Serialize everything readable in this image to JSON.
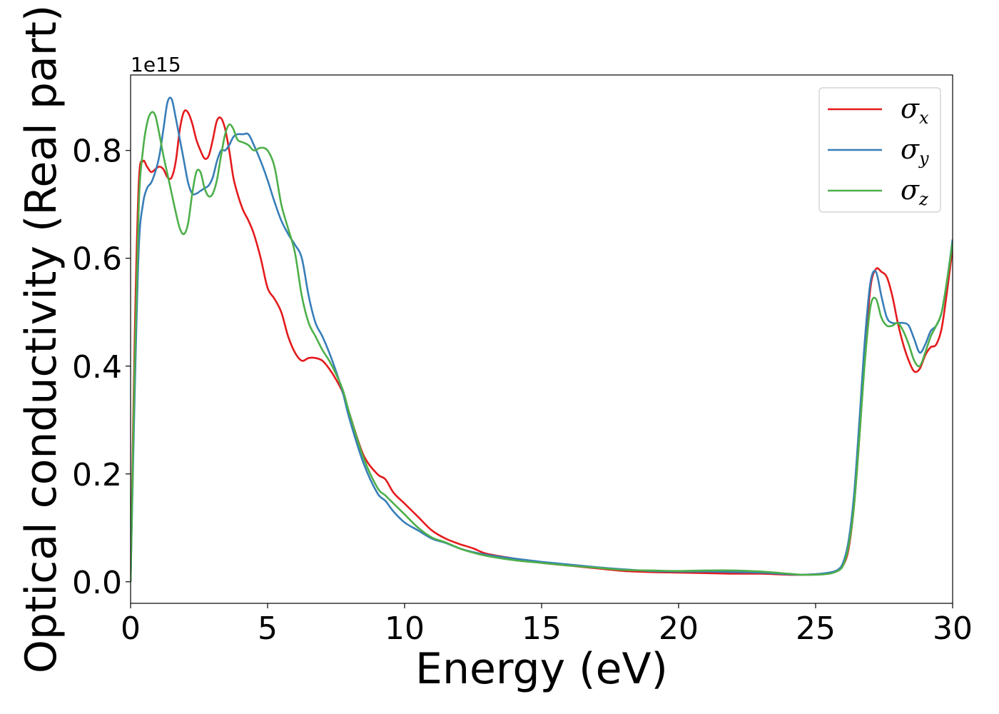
{
  "chart_data": {
    "type": "line",
    "xlabel": "Energy (eV)",
    "ylabel": "Optical conductivity (Real part)",
    "y_offset_label": "1e15",
    "xlim": [
      0,
      30
    ],
    "ylim": [
      -0.04,
      0.94
    ],
    "x_ticks": [
      0,
      5,
      10,
      15,
      20,
      25,
      30
    ],
    "y_ticks": [
      0.0,
      0.2,
      0.4,
      0.6,
      0.8
    ],
    "y_tick_labels": [
      "0.0",
      "0.2",
      "0.4",
      "0.6",
      "0.8"
    ],
    "grid": false,
    "legend_position": "top-right",
    "series": [
      {
        "name": "σx",
        "symbol": "σ",
        "sub": "x",
        "color": "#e41a1c",
        "x": [
          0,
          0.15,
          0.3,
          0.45,
          0.6,
          0.75,
          0.9,
          1.05,
          1.2,
          1.35,
          1.5,
          1.65,
          1.8,
          1.95,
          2.1,
          2.25,
          2.4,
          2.55,
          2.7,
          2.85,
          3.0,
          3.15,
          3.3,
          3.45,
          3.6,
          3.75,
          3.9,
          4.1,
          4.3,
          4.5,
          4.75,
          5.0,
          5.25,
          5.5,
          5.75,
          6.0,
          6.25,
          6.5,
          6.75,
          7.0,
          7.25,
          7.5,
          7.75,
          8.0,
          8.5,
          9.0,
          9.3,
          9.6,
          10.0,
          10.5,
          11.0,
          11.5,
          12.0,
          12.5,
          13.0,
          14.0,
          15.0,
          16.0,
          17.0,
          18.0,
          19.0,
          20.0,
          21.0,
          22.0,
          23.0,
          24.0,
          24.5,
          25.0,
          25.5,
          25.8,
          26.0,
          26.2,
          26.4,
          26.6,
          26.8,
          27.0,
          27.2,
          27.4,
          27.6,
          27.8,
          28.0,
          28.2,
          28.4,
          28.6,
          28.8,
          29.0,
          29.2,
          29.4,
          29.6,
          29.8,
          30.0
        ],
        "y": [
          0.0,
          0.45,
          0.74,
          0.78,
          0.77,
          0.76,
          0.765,
          0.77,
          0.765,
          0.75,
          0.75,
          0.78,
          0.84,
          0.872,
          0.87,
          0.85,
          0.82,
          0.8,
          0.785,
          0.79,
          0.82,
          0.855,
          0.86,
          0.84,
          0.8,
          0.75,
          0.72,
          0.69,
          0.67,
          0.645,
          0.6,
          0.545,
          0.525,
          0.5,
          0.455,
          0.425,
          0.41,
          0.415,
          0.415,
          0.41,
          0.395,
          0.375,
          0.35,
          0.31,
          0.235,
          0.2,
          0.19,
          0.165,
          0.145,
          0.12,
          0.095,
          0.08,
          0.07,
          0.062,
          0.052,
          0.043,
          0.035,
          0.03,
          0.025,
          0.02,
          0.018,
          0.017,
          0.016,
          0.015,
          0.015,
          0.013,
          0.013,
          0.014,
          0.016,
          0.02,
          0.03,
          0.06,
          0.14,
          0.27,
          0.42,
          0.545,
          0.58,
          0.575,
          0.565,
          0.53,
          0.48,
          0.44,
          0.41,
          0.39,
          0.395,
          0.42,
          0.435,
          0.44,
          0.47,
          0.54,
          0.62
        ]
      },
      {
        "name": "σy",
        "symbol": "σ",
        "sub": "y",
        "color": "#377eb8",
        "x": [
          0,
          0.15,
          0.3,
          0.45,
          0.6,
          0.75,
          0.9,
          1.05,
          1.2,
          1.35,
          1.5,
          1.65,
          1.8,
          1.95,
          2.1,
          2.25,
          2.4,
          2.55,
          2.7,
          2.85,
          3.0,
          3.15,
          3.3,
          3.45,
          3.6,
          3.75,
          3.9,
          4.1,
          4.3,
          4.5,
          4.75,
          5.0,
          5.25,
          5.5,
          5.75,
          6.0,
          6.25,
          6.5,
          6.75,
          7.0,
          7.25,
          7.5,
          7.75,
          8.0,
          8.5,
          9.0,
          9.3,
          9.6,
          10.0,
          10.5,
          11.0,
          11.5,
          12.0,
          12.5,
          13.0,
          14.0,
          15.0,
          16.0,
          17.0,
          18.0,
          19.0,
          20.0,
          21.0,
          22.0,
          23.0,
          24.0,
          24.5,
          25.0,
          25.5,
          25.8,
          26.0,
          26.2,
          26.4,
          26.6,
          26.8,
          27.0,
          27.2,
          27.4,
          27.6,
          27.8,
          28.0,
          28.2,
          28.4,
          28.6,
          28.8,
          29.0,
          29.2,
          29.4,
          29.6,
          29.8,
          30.0
        ],
        "y": [
          0.0,
          0.35,
          0.62,
          0.7,
          0.73,
          0.74,
          0.76,
          0.79,
          0.84,
          0.89,
          0.895,
          0.86,
          0.82,
          0.78,
          0.74,
          0.72,
          0.72,
          0.725,
          0.73,
          0.735,
          0.75,
          0.78,
          0.8,
          0.8,
          0.81,
          0.825,
          0.83,
          0.83,
          0.83,
          0.81,
          0.78,
          0.745,
          0.705,
          0.67,
          0.645,
          0.625,
          0.6,
          0.53,
          0.48,
          0.455,
          0.425,
          0.39,
          0.35,
          0.3,
          0.22,
          0.165,
          0.15,
          0.13,
          0.11,
          0.095,
          0.08,
          0.072,
          0.062,
          0.055,
          0.05,
          0.043,
          0.037,
          0.032,
          0.027,
          0.023,
          0.02,
          0.019,
          0.019,
          0.018,
          0.017,
          0.014,
          0.013,
          0.014,
          0.017,
          0.022,
          0.035,
          0.075,
          0.16,
          0.3,
          0.45,
          0.555,
          0.575,
          0.53,
          0.49,
          0.48,
          0.48,
          0.48,
          0.475,
          0.45,
          0.425,
          0.44,
          0.465,
          0.475,
          0.5,
          0.56,
          0.635
        ]
      },
      {
        "name": "σz",
        "symbol": "σ",
        "sub": "z",
        "color": "#4daf4a",
        "x": [
          0,
          0.15,
          0.3,
          0.45,
          0.6,
          0.75,
          0.9,
          1.05,
          1.2,
          1.35,
          1.5,
          1.65,
          1.8,
          1.95,
          2.1,
          2.25,
          2.4,
          2.55,
          2.7,
          2.85,
          3.0,
          3.15,
          3.3,
          3.45,
          3.6,
          3.75,
          3.9,
          4.1,
          4.3,
          4.5,
          4.75,
          5.0,
          5.25,
          5.5,
          5.75,
          6.0,
          6.25,
          6.5,
          6.75,
          7.0,
          7.25,
          7.5,
          7.75,
          8.0,
          8.5,
          9.0,
          9.3,
          9.6,
          10.0,
          10.5,
          11.0,
          11.5,
          12.0,
          12.5,
          13.0,
          14.0,
          15.0,
          16.0,
          17.0,
          18.0,
          19.0,
          20.0,
          21.0,
          22.0,
          23.0,
          24.0,
          24.5,
          25.0,
          25.5,
          25.8,
          26.0,
          26.2,
          26.4,
          26.6,
          26.8,
          27.0,
          27.2,
          27.4,
          27.6,
          27.8,
          28.0,
          28.2,
          28.4,
          28.6,
          28.8,
          29.0,
          29.2,
          29.4,
          29.6,
          29.8,
          30.0
        ],
        "y": [
          0.0,
          0.4,
          0.7,
          0.8,
          0.85,
          0.87,
          0.865,
          0.83,
          0.79,
          0.755,
          0.72,
          0.685,
          0.655,
          0.645,
          0.665,
          0.72,
          0.76,
          0.76,
          0.73,
          0.715,
          0.72,
          0.745,
          0.79,
          0.83,
          0.848,
          0.84,
          0.82,
          0.815,
          0.81,
          0.8,
          0.805,
          0.8,
          0.77,
          0.7,
          0.655,
          0.61,
          0.53,
          0.48,
          0.455,
          0.43,
          0.41,
          0.385,
          0.355,
          0.31,
          0.23,
          0.175,
          0.16,
          0.145,
          0.125,
          0.1,
          0.082,
          0.073,
          0.062,
          0.054,
          0.048,
          0.04,
          0.035,
          0.03,
          0.026,
          0.022,
          0.021,
          0.02,
          0.021,
          0.021,
          0.019,
          0.015,
          0.013,
          0.013,
          0.015,
          0.02,
          0.03,
          0.065,
          0.14,
          0.27,
          0.41,
          0.51,
          0.525,
          0.49,
          0.475,
          0.475,
          0.48,
          0.465,
          0.44,
          0.41,
          0.4,
          0.425,
          0.455,
          0.475,
          0.5,
          0.56,
          0.63
        ]
      }
    ]
  }
}
